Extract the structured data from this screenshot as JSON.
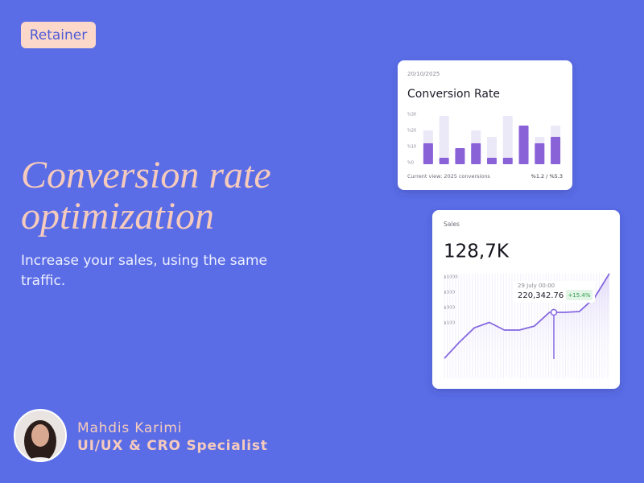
{
  "badge": "Retainer",
  "headline": {
    "line1": "Conversion rate",
    "line2": "optimization"
  },
  "subtitle": {
    "line1": "Increase your sales, using the same",
    "line2": "traffic."
  },
  "author": {
    "name": "Mahdis Karimi",
    "role": "UI/UX & CRO Specialist"
  },
  "conversion_card": {
    "date": "20/10/2025",
    "footer_left": "Current view: 2025 conversions",
    "footer_right": "%1.2 / %5.3",
    "chart_data": {
      "type": "bar",
      "title": "Conversion Rate",
      "categories": [
        null,
        null,
        null,
        null,
        null,
        null,
        null,
        null,
        null
      ],
      "series": [
        {
          "color": "#ebe8f8",
          "values": [
            21,
            30,
            10,
            21,
            17,
            30,
            24,
            17,
            24
          ]
        },
        {
          "color": "#8a62d8",
          "values": [
            13,
            4,
            10,
            13,
            4,
            4,
            24,
            13,
            17
          ]
        }
      ],
      "ylim": [
        0,
        30
      ],
      "yticks": [
        {
          "value": 30,
          "label": "%30"
        },
        {
          "value": 20,
          "label": "%20"
        },
        {
          "value": 10,
          "label": "%10"
        },
        {
          "value": 0,
          "label": "%0"
        }
      ]
    }
  },
  "sales_card": {
    "label": "Sales",
    "total": "128,7K",
    "tooltip": {
      "date": "29 July 00:00",
      "value": "220,342.76",
      "change": "+15.4%"
    },
    "chart_data": {
      "type": "line",
      "categories": [
        null,
        null,
        null,
        null,
        null,
        null,
        null,
        null,
        null,
        null,
        null,
        null
      ],
      "series": [
        {
          "color": "#8467e0",
          "values": [
            36,
            65,
            91,
            105,
            87,
            87,
            94,
            237,
            237,
            247,
            426,
            1105
          ]
        }
      ],
      "ylim": [
        0,
        1200
      ],
      "yticks": [
        {
          "value": 100,
          "label": "$100"
        },
        {
          "value": 300,
          "label": "$300"
        },
        {
          "value": 500,
          "label": "$500"
        },
        {
          "value": 1000,
          "label": "$1000"
        }
      ]
    }
  }
}
